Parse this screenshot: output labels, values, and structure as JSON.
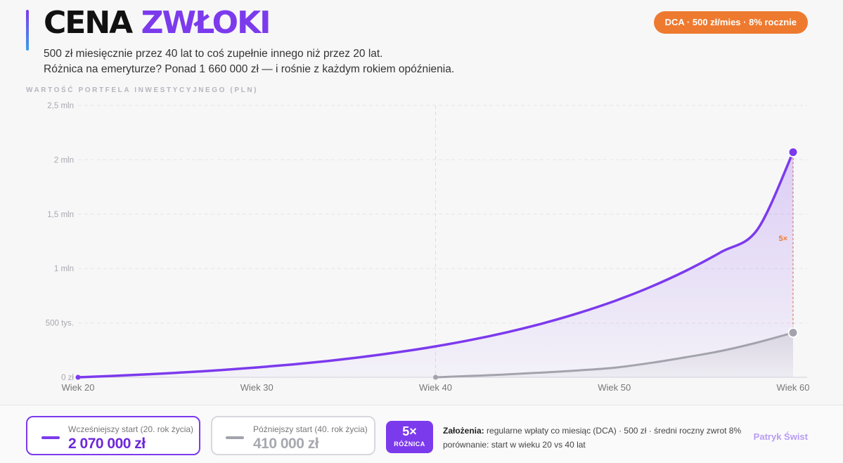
{
  "header": {
    "title_part1": "CENA",
    "title_part2": "ZWŁOKI",
    "badge": "DCA · 500 zł/mies · 8% rocznie",
    "subtitle_line1": "500 zł miesięcznie przez 40 lat to coś zupełnie innego niż przez 20 lat.",
    "subtitle_line2": "Różnica na emeryturze? Ponad 1 660 000 zł — i rośnie z każdym rokiem opóźnienia."
  },
  "chart_data": {
    "type": "area",
    "ylabel": "WARTOŚĆ PORTFELA INWESTYCYJNEGO (PLN)",
    "xlabel": "",
    "x_ticks": [
      20,
      30,
      40,
      50,
      60
    ],
    "x_tick_labels": [
      "Wiek 20",
      "Wiek 30",
      "Wiek 40",
      "Wiek 50",
      "Wiek 60"
    ],
    "y_ticks": [
      0,
      500000,
      1000000,
      1500000,
      2000000,
      2500000
    ],
    "y_tick_labels": [
      "0 zł",
      "500 tys.",
      "1 mln",
      "1,5 mln",
      "2 mln",
      "2,5 mln"
    ],
    "xlim": [
      20,
      60
    ],
    "ylim": [
      0,
      2500000
    ],
    "grid": true,
    "series": [
      {
        "name": "Wcześniejszy start (20. rok życia)",
        "color": "#7c3aed",
        "x": [
          20,
          22,
          24,
          26,
          28,
          30,
          32,
          34,
          36,
          38,
          40,
          42,
          44,
          46,
          48,
          50,
          52,
          54,
          56,
          58,
          60
        ],
        "values": [
          0,
          13000,
          28200,
          45900,
          66500,
          90400,
          118300,
          150800,
          188800,
          233000,
          284300,
          344000,
          414200,
          495600,
          590600,
          700400,
          829000,
          979000,
          1154000,
          1358000,
          2070000
        ]
      },
      {
        "name": "Późniejszy start (40. rok życia)",
        "color": "#a3a3ad",
        "x": [
          40,
          42,
          44,
          46,
          48,
          50,
          52,
          54,
          56,
          58,
          60
        ],
        "values": [
          0,
          12800,
          26200,
          44100,
          63200,
          88000,
          131000,
          184000,
          243000,
          320000,
          410000
        ]
      }
    ],
    "annotation": "5×"
  },
  "footer": {
    "early_label": "Wcześniejszy start (20. rok życia)",
    "early_value": "2 070 000 zł",
    "late_label": "Późniejszy start (40. rok życia)",
    "late_value": "410 000 zł",
    "multiplier": "5×",
    "multiplier_label": "RÓŻNICA",
    "assumptions_title": "Założenia:",
    "assumptions_line1": "regularne wpłaty co miesiąc (DCA) · 500 zł · średni roczny zwrot 8%",
    "assumptions_line2": "porównanie: start w wieku 20 vs 40 lat",
    "author": "Patryk Świst"
  }
}
